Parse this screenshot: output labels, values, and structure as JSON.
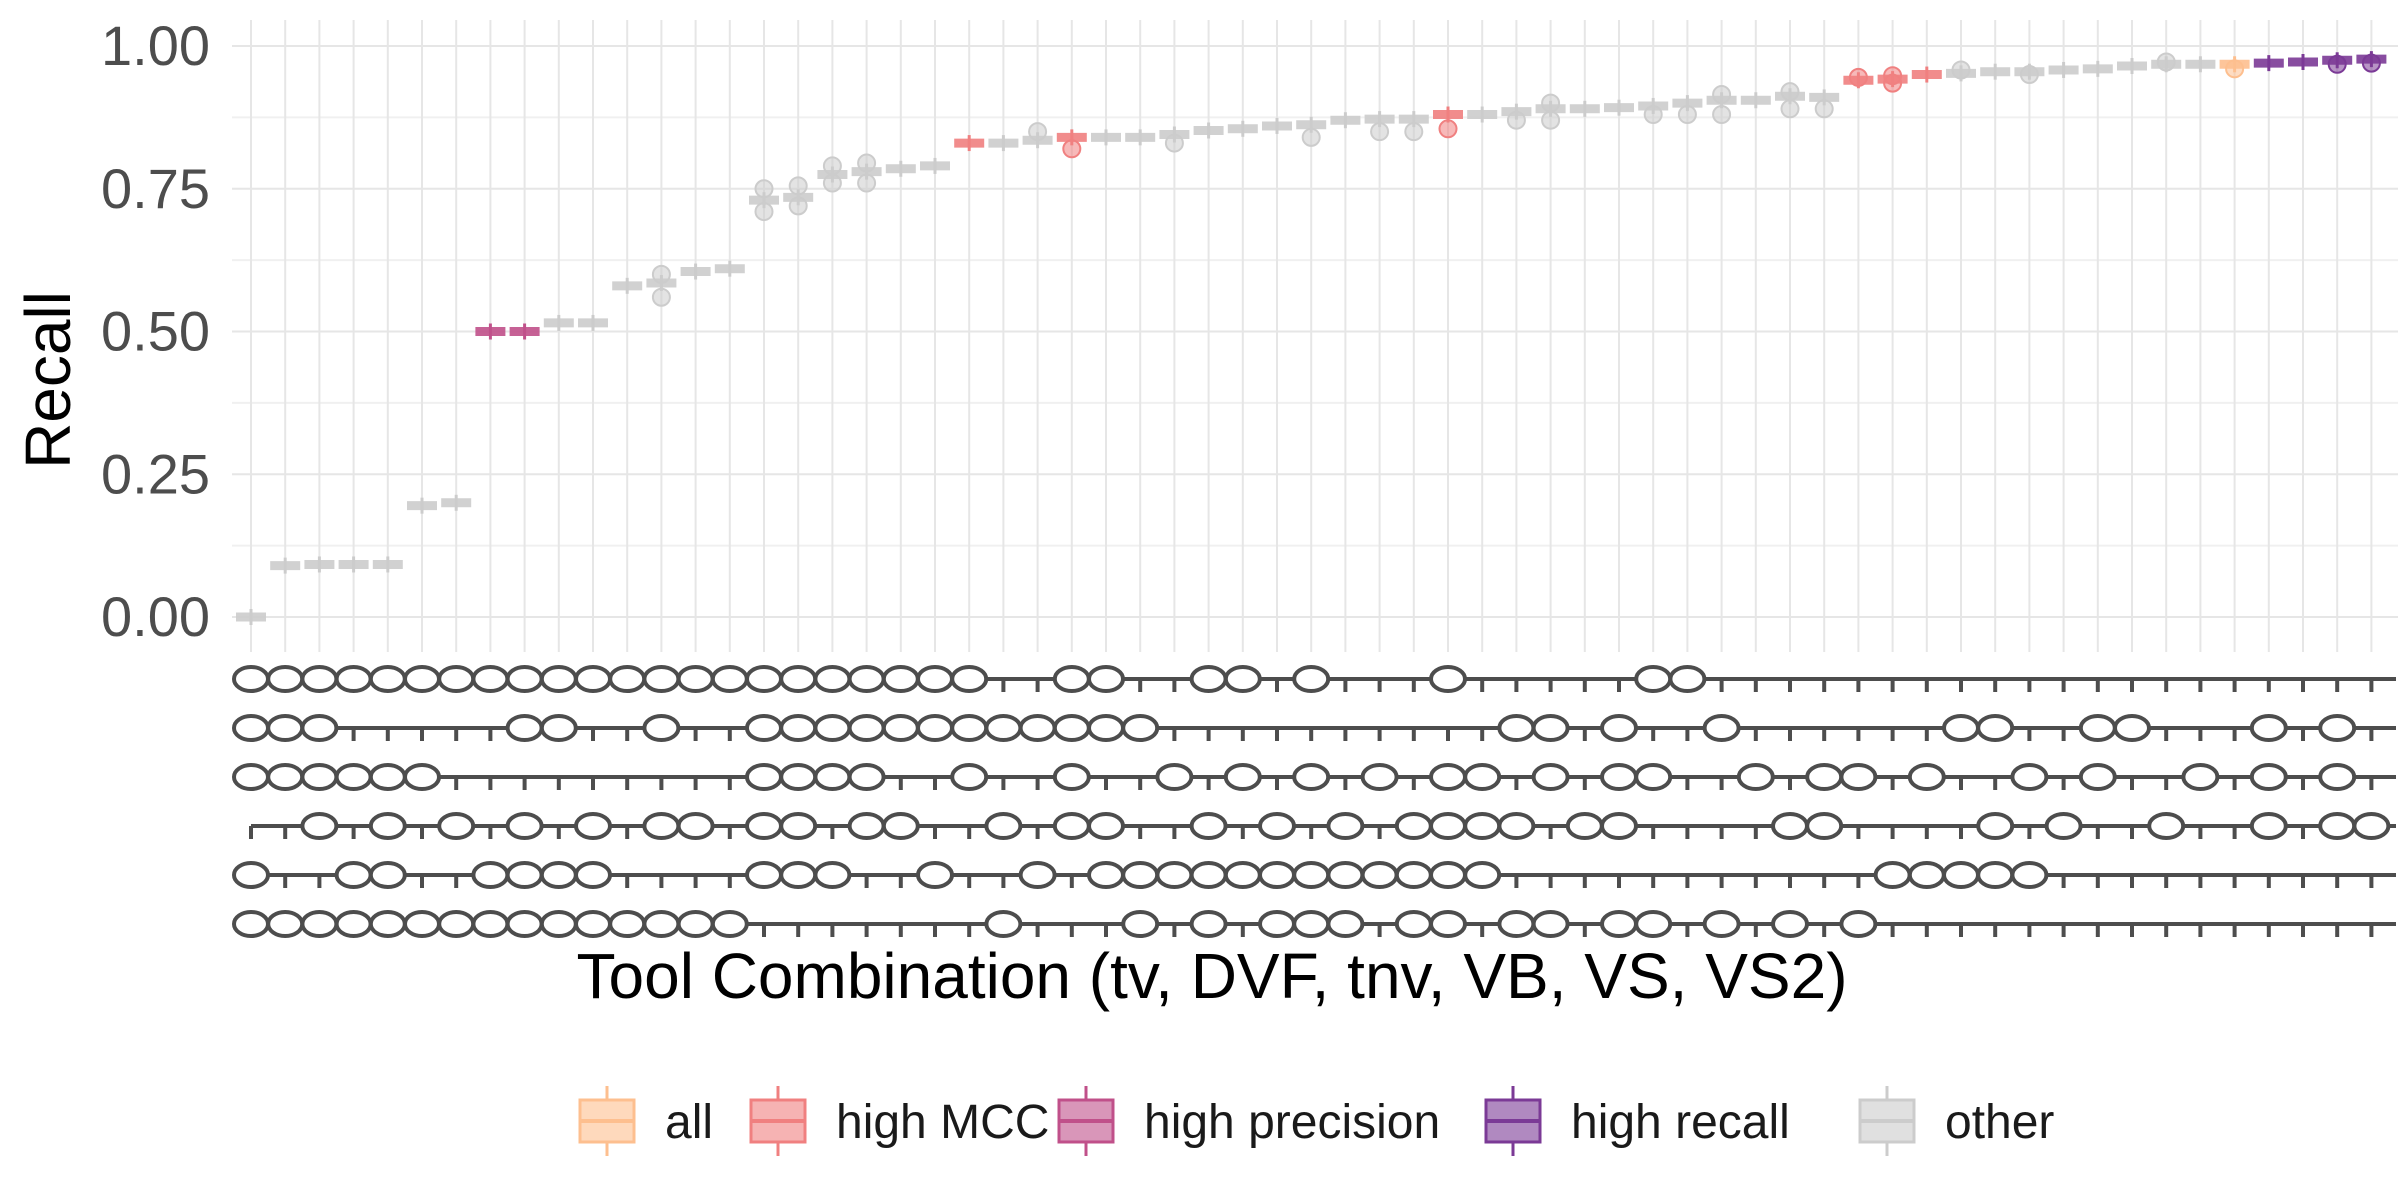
{
  "chart_data": {
    "type": "boxplot",
    "xlabel": "Tool Combination (tv, DVF, tnv, VB, VS, VS2)",
    "ylabel": "Recall",
    "ylim": [
      0,
      1
    ],
    "yticks": [
      "0.00",
      "0.25",
      "0.50",
      "0.75",
      "1.00"
    ],
    "legend_position": "bottom",
    "groups": [
      {
        "name": "all",
        "color": "#fdbf8f"
      },
      {
        "name": "high MCC",
        "color": "#f08080"
      },
      {
        "name": "high precision",
        "color": "#c0508a"
      },
      {
        "name": "high recall",
        "color": "#7b3a96"
      },
      {
        "name": "other",
        "color": "#cccccc"
      }
    ],
    "tools": [
      "tv",
      "DVF",
      "tnv",
      "VB",
      "VS",
      "VS2"
    ],
    "series": [
      {
        "category": "other",
        "median": 0.0,
        "outliers": []
      },
      {
        "category": "other",
        "median": 0.09,
        "outliers": []
      },
      {
        "category": "other",
        "median": 0.092,
        "outliers": []
      },
      {
        "category": "other",
        "median": 0.092,
        "outliers": []
      },
      {
        "category": "other",
        "median": 0.092,
        "outliers": []
      },
      {
        "category": "other",
        "median": 0.195,
        "outliers": []
      },
      {
        "category": "other",
        "median": 0.2,
        "outliers": []
      },
      {
        "category": "high precision",
        "median": 0.5,
        "outliers": []
      },
      {
        "category": "high precision",
        "median": 0.5,
        "outliers": []
      },
      {
        "category": "other",
        "median": 0.515,
        "outliers": []
      },
      {
        "category": "other",
        "median": 0.515,
        "outliers": []
      },
      {
        "category": "other",
        "median": 0.58,
        "outliers": []
      },
      {
        "category": "other",
        "median": 0.585,
        "outliers": [
          0.56,
          0.6
        ]
      },
      {
        "category": "other",
        "median": 0.605,
        "outliers": []
      },
      {
        "category": "other",
        "median": 0.61,
        "outliers": []
      },
      {
        "category": "other",
        "median": 0.73,
        "outliers": [
          0.71,
          0.75
        ]
      },
      {
        "category": "other",
        "median": 0.735,
        "outliers": [
          0.72,
          0.755
        ]
      },
      {
        "category": "other",
        "median": 0.775,
        "outliers": [
          0.76,
          0.79
        ]
      },
      {
        "category": "other",
        "median": 0.78,
        "outliers": [
          0.76,
          0.795
        ]
      },
      {
        "category": "other",
        "median": 0.785,
        "outliers": []
      },
      {
        "category": "other",
        "median": 0.79,
        "outliers": []
      },
      {
        "category": "high MCC",
        "median": 0.83,
        "outliers": []
      },
      {
        "category": "other",
        "median": 0.83,
        "outliers": []
      },
      {
        "category": "other",
        "median": 0.835,
        "outliers": [
          0.85
        ]
      },
      {
        "category": "high MCC",
        "median": 0.84,
        "outliers": [
          0.82
        ]
      },
      {
        "category": "other",
        "median": 0.84,
        "outliers": []
      },
      {
        "category": "other",
        "median": 0.84,
        "outliers": []
      },
      {
        "category": "other",
        "median": 0.845,
        "outliers": [
          0.83
        ]
      },
      {
        "category": "other",
        "median": 0.852,
        "outliers": []
      },
      {
        "category": "other",
        "median": 0.855,
        "outliers": []
      },
      {
        "category": "other",
        "median": 0.86,
        "outliers": []
      },
      {
        "category": "other",
        "median": 0.862,
        "outliers": [
          0.84
        ]
      },
      {
        "category": "other",
        "median": 0.87,
        "outliers": []
      },
      {
        "category": "other",
        "median": 0.872,
        "outliers": [
          0.85
        ]
      },
      {
        "category": "other",
        "median": 0.872,
        "outliers": [
          0.85
        ]
      },
      {
        "category": "high MCC",
        "median": 0.88,
        "outliers": [
          0.855
        ]
      },
      {
        "category": "other",
        "median": 0.88,
        "outliers": []
      },
      {
        "category": "other",
        "median": 0.885,
        "outliers": [
          0.87
        ]
      },
      {
        "category": "other",
        "median": 0.89,
        "outliers": [
          0.87,
          0.9
        ]
      },
      {
        "category": "other",
        "median": 0.89,
        "outliers": []
      },
      {
        "category": "other",
        "median": 0.892,
        "outliers": []
      },
      {
        "category": "other",
        "median": 0.895,
        "outliers": [
          0.88
        ]
      },
      {
        "category": "other",
        "median": 0.9,
        "outliers": [
          0.88
        ]
      },
      {
        "category": "other",
        "median": 0.905,
        "outliers": [
          0.88,
          0.915
        ]
      },
      {
        "category": "other",
        "median": 0.905,
        "outliers": []
      },
      {
        "category": "other",
        "median": 0.912,
        "outliers": [
          0.89,
          0.92
        ]
      },
      {
        "category": "other",
        "median": 0.91,
        "outliers": [
          0.89
        ]
      },
      {
        "category": "high MCC",
        "median": 0.94,
        "outliers": [
          0.945
        ]
      },
      {
        "category": "high MCC",
        "median": 0.942,
        "outliers": [
          0.935,
          0.948
        ]
      },
      {
        "category": "high MCC",
        "median": 0.95,
        "outliers": []
      },
      {
        "category": "other",
        "median": 0.952,
        "outliers": [
          0.958
        ]
      },
      {
        "category": "other",
        "median": 0.955,
        "outliers": []
      },
      {
        "category": "other",
        "median": 0.955,
        "outliers": [
          0.95
        ]
      },
      {
        "category": "other",
        "median": 0.958,
        "outliers": []
      },
      {
        "category": "other",
        "median": 0.96,
        "outliers": []
      },
      {
        "category": "other",
        "median": 0.965,
        "outliers": []
      },
      {
        "category": "other",
        "median": 0.968,
        "outliers": [
          0.972
        ]
      },
      {
        "category": "other",
        "median": 0.968,
        "outliers": []
      },
      {
        "category": "all",
        "median": 0.968,
        "outliers": [
          0.96
        ]
      },
      {
        "category": "high recall",
        "median": 0.97,
        "outliers": []
      },
      {
        "category": "high recall",
        "median": 0.972,
        "outliers": []
      },
      {
        "category": "high recall",
        "median": 0.975,
        "outliers": [
          0.968
        ]
      },
      {
        "category": "high recall",
        "median": 0.977,
        "outliers": [
          0.97
        ]
      }
    ],
    "combos": [
      [
        1,
        1,
        1,
        0,
        1,
        1
      ],
      [
        1,
        1,
        1,
        0,
        0,
        1
      ],
      [
        1,
        1,
        1,
        1,
        0,
        1
      ],
      [
        1,
        0,
        1,
        0,
        1,
        1
      ],
      [
        1,
        0,
        1,
        1,
        1,
        1
      ],
      [
        1,
        0,
        1,
        0,
        0,
        1
      ],
      [
        1,
        0,
        0,
        1,
        0,
        1
      ],
      [
        1,
        0,
        0,
        0,
        1,
        1
      ],
      [
        1,
        1,
        0,
        1,
        1,
        1
      ],
      [
        1,
        1,
        0,
        0,
        1,
        1
      ],
      [
        1,
        0,
        0,
        1,
        1,
        1
      ],
      [
        1,
        0,
        0,
        0,
        0,
        1
      ],
      [
        1,
        1,
        0,
        1,
        0,
        1
      ],
      [
        1,
        0,
        0,
        1,
        0,
        1
      ],
      [
        1,
        0,
        0,
        0,
        0,
        1
      ],
      [
        1,
        1,
        1,
        1,
        1,
        0
      ],
      [
        1,
        1,
        1,
        1,
        1,
        0
      ],
      [
        1,
        1,
        1,
        0,
        1,
        0
      ],
      [
        1,
        1,
        1,
        1,
        0,
        0
      ],
      [
        1,
        1,
        0,
        1,
        0,
        0
      ],
      [
        1,
        1,
        0,
        0,
        1,
        0
      ],
      [
        1,
        1,
        1,
        0,
        0,
        0
      ],
      [
        0,
        1,
        0,
        1,
        0,
        1
      ],
      [
        0,
        1,
        0,
        0,
        1,
        0
      ],
      [
        1,
        1,
        1,
        1,
        0,
        0
      ],
      [
        1,
        1,
        0,
        1,
        1,
        0
      ],
      [
        0,
        1,
        0,
        0,
        1,
        1
      ],
      [
        0,
        0,
        1,
        0,
        1,
        0
      ],
      [
        1,
        0,
        0,
        1,
        1,
        1
      ],
      [
        1,
        0,
        1,
        0,
        1,
        0
      ],
      [
        0,
        0,
        0,
        1,
        1,
        1
      ],
      [
        1,
        0,
        1,
        0,
        1,
        1
      ],
      [
        0,
        0,
        0,
        1,
        1,
        1
      ],
      [
        0,
        0,
        1,
        0,
        1,
        0
      ],
      [
        0,
        0,
        0,
        1,
        1,
        1
      ],
      [
        1,
        0,
        1,
        1,
        1,
        1
      ],
      [
        0,
        0,
        1,
        1,
        1,
        0
      ],
      [
        0,
        1,
        0,
        1,
        0,
        1
      ],
      [
        0,
        1,
        1,
        0,
        0,
        1
      ],
      [
        0,
        0,
        0,
        1,
        0,
        0
      ],
      [
        0,
        1,
        1,
        1,
        0,
        1
      ],
      [
        1,
        0,
        1,
        0,
        0,
        1
      ],
      [
        1,
        0,
        0,
        0,
        0,
        0
      ],
      [
        0,
        1,
        0,
        0,
        0,
        1
      ],
      [
        0,
        0,
        1,
        0,
        0,
        0
      ],
      [
        0,
        0,
        0,
        1,
        0,
        1
      ],
      [
        0,
        0,
        1,
        1,
        0,
        0
      ],
      [
        0,
        0,
        1,
        0,
        0,
        1
      ],
      [
        0,
        0,
        0,
        0,
        1,
        0
      ],
      [
        0,
        0,
        1,
        0,
        1,
        0
      ],
      [
        0,
        1,
        0,
        0,
        1,
        0
      ],
      [
        0,
        1,
        0,
        1,
        1,
        0
      ],
      [
        0,
        0,
        1,
        0,
        1,
        0
      ],
      [
        0,
        0,
        0,
        1,
        0,
        0
      ],
      [
        0,
        1,
        1,
        0,
        0,
        0
      ],
      [
        0,
        1,
        0,
        0,
        0,
        0
      ],
      [
        0,
        0,
        0,
        1,
        0,
        0
      ],
      [
        0,
        0,
        1,
        0,
        0,
        0
      ],
      [
        0,
        0,
        0,
        0,
        0,
        0
      ],
      [
        0,
        1,
        1,
        1,
        0,
        0
      ],
      [
        0,
        0,
        0,
        0,
        0,
        0
      ],
      [
        0,
        1,
        1,
        1,
        0,
        0
      ],
      [
        0,
        0,
        0,
        1,
        0,
        0
      ]
    ]
  }
}
